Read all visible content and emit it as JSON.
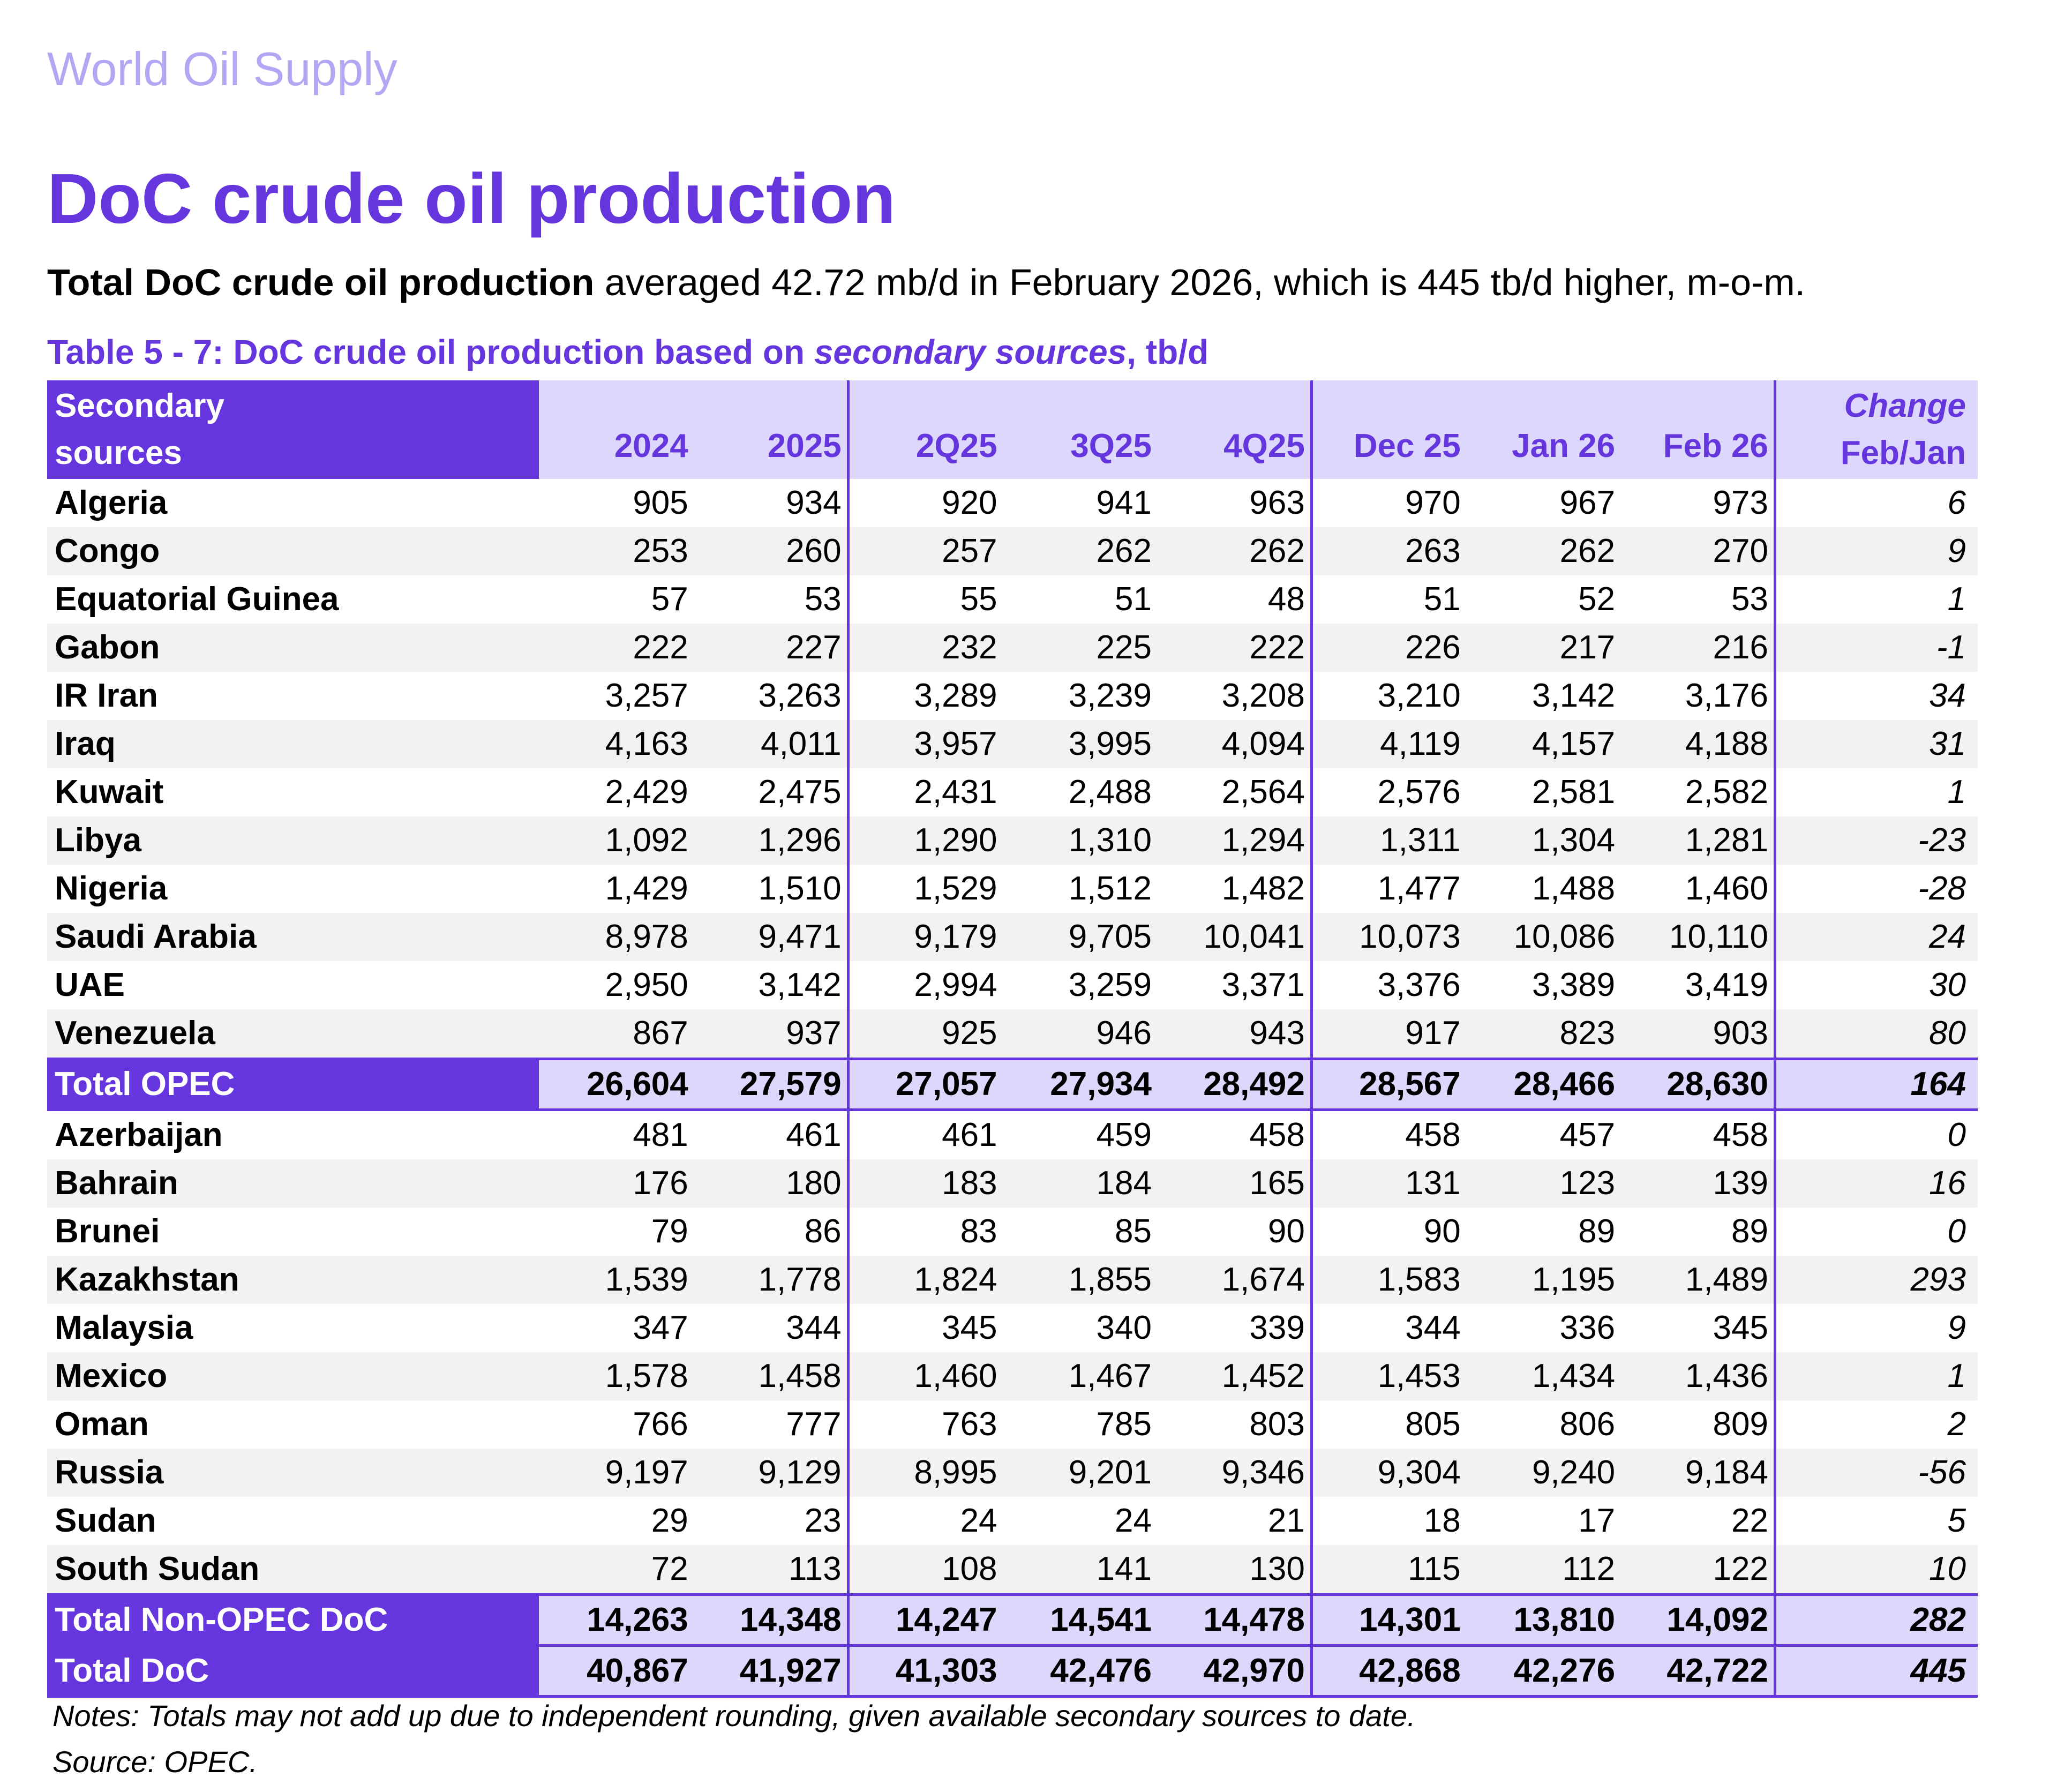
{
  "header": {
    "section": "World Oil Supply",
    "title": "DoC crude oil production",
    "summary_bold": "Total DoC crude oil production",
    "summary_rest": " averaged 42.72 mb/d in February 2026, which is 445 tb/d higher, m-o-m."
  },
  "caption": {
    "prefix": "Table 5 - 7: DoC crude oil production based on ",
    "italic": "secondary sources",
    "suffix": ", tb/d"
  },
  "table": {
    "name_header_line1": "Secondary",
    "name_header_line2": "sources",
    "columns": [
      "2024",
      "2025",
      "2Q25",
      "3Q25",
      "4Q25",
      "Dec 25",
      "Jan 26",
      "Feb 26"
    ],
    "change_header_line1": "Change",
    "change_header_line2": "Feb/Jan",
    "rows": [
      {
        "name": "Algeria",
        "values": [
          "905",
          "934",
          "920",
          "941",
          "963",
          "970",
          "967",
          "973"
        ],
        "change": "6"
      },
      {
        "name": "Congo",
        "values": [
          "253",
          "260",
          "257",
          "262",
          "262",
          "263",
          "262",
          "270"
        ],
        "change": "9"
      },
      {
        "name": "Equatorial Guinea",
        "values": [
          "57",
          "53",
          "55",
          "51",
          "48",
          "51",
          "52",
          "53"
        ],
        "change": "1"
      },
      {
        "name": "Gabon",
        "values": [
          "222",
          "227",
          "232",
          "225",
          "222",
          "226",
          "217",
          "216"
        ],
        "change": "-1"
      },
      {
        "name": "IR Iran",
        "values": [
          "3,257",
          "3,263",
          "3,289",
          "3,239",
          "3,208",
          "3,210",
          "3,142",
          "3,176"
        ],
        "change": "34"
      },
      {
        "name": "Iraq",
        "values": [
          "4,163",
          "4,011",
          "3,957",
          "3,995",
          "4,094",
          "4,119",
          "4,157",
          "4,188"
        ],
        "change": "31"
      },
      {
        "name": "Kuwait",
        "values": [
          "2,429",
          "2,475",
          "2,431",
          "2,488",
          "2,564",
          "2,576",
          "2,581",
          "2,582"
        ],
        "change": "1"
      },
      {
        "name": "Libya",
        "values": [
          "1,092",
          "1,296",
          "1,290",
          "1,310",
          "1,294",
          "1,311",
          "1,304",
          "1,281"
        ],
        "change": "-23"
      },
      {
        "name": "Nigeria",
        "values": [
          "1,429",
          "1,510",
          "1,529",
          "1,512",
          "1,482",
          "1,477",
          "1,488",
          "1,460"
        ],
        "change": "-28"
      },
      {
        "name": "Saudi Arabia",
        "values": [
          "8,978",
          "9,471",
          "9,179",
          "9,705",
          "10,041",
          "10,073",
          "10,086",
          "10,110"
        ],
        "change": "24"
      },
      {
        "name": "UAE",
        "values": [
          "2,950",
          "3,142",
          "2,994",
          "3,259",
          "3,371",
          "3,376",
          "3,389",
          "3,419"
        ],
        "change": "30"
      },
      {
        "name": "Venezuela",
        "values": [
          "867",
          "937",
          "925",
          "946",
          "943",
          "917",
          "823",
          "903"
        ],
        "change": "80"
      },
      {
        "name": "Total  OPEC",
        "values": [
          "26,604",
          "27,579",
          "27,057",
          "27,934",
          "28,492",
          "28,567",
          "28,466",
          "28,630"
        ],
        "change": "164",
        "total": true
      },
      {
        "name": "Azerbaijan",
        "values": [
          "481",
          "461",
          "461",
          "459",
          "458",
          "458",
          "457",
          "458"
        ],
        "change": "0"
      },
      {
        "name": "Bahrain",
        "values": [
          "176",
          "180",
          "183",
          "184",
          "165",
          "131",
          "123",
          "139"
        ],
        "change": "16"
      },
      {
        "name": "Brunei",
        "values": [
          "79",
          "86",
          "83",
          "85",
          "90",
          "90",
          "89",
          "89"
        ],
        "change": "0"
      },
      {
        "name": "Kazakhstan",
        "values": [
          "1,539",
          "1,778",
          "1,824",
          "1,855",
          "1,674",
          "1,583",
          "1,195",
          "1,489"
        ],
        "change": "293"
      },
      {
        "name": "Malaysia",
        "values": [
          "347",
          "344",
          "345",
          "340",
          "339",
          "344",
          "336",
          "345"
        ],
        "change": "9"
      },
      {
        "name": "Mexico",
        "values": [
          "1,578",
          "1,458",
          "1,460",
          "1,467",
          "1,452",
          "1,453",
          "1,434",
          "1,436"
        ],
        "change": "1"
      },
      {
        "name": "Oman",
        "values": [
          "766",
          "777",
          "763",
          "785",
          "803",
          "805",
          "806",
          "809"
        ],
        "change": "2"
      },
      {
        "name": "Russia",
        "values": [
          "9,197",
          "9,129",
          "8,995",
          "9,201",
          "9,346",
          "9,304",
          "9,240",
          "9,184"
        ],
        "change": "-56"
      },
      {
        "name": "Sudan",
        "values": [
          "29",
          "23",
          "24",
          "24",
          "21",
          "18",
          "17",
          "22"
        ],
        "change": "5"
      },
      {
        "name": "South Sudan",
        "values": [
          "72",
          "113",
          "108",
          "141",
          "130",
          "115",
          "112",
          "122"
        ],
        "change": "10"
      },
      {
        "name": "Total Non-OPEC DoC",
        "values": [
          "14,263",
          "14,348",
          "14,247",
          "14,541",
          "14,478",
          "14,301",
          "13,810",
          "14,092"
        ],
        "change": "282",
        "total": true
      },
      {
        "name": "Total DoC",
        "values": [
          "40,867",
          "41,927",
          "41,303",
          "42,476",
          "42,970",
          "42,868",
          "42,276",
          "42,722"
        ],
        "change": "445",
        "total": true
      }
    ]
  },
  "footer": {
    "notes": "Notes: Totals may not add up due to independent rounding, given available secondary sources to date.",
    "source": "Source: OPEC."
  },
  "colors": {
    "accent": "#6535dd",
    "section_title": "#b3a6f2",
    "header_band": "#ddd7fb",
    "stripe": "#f2f2f2"
  }
}
